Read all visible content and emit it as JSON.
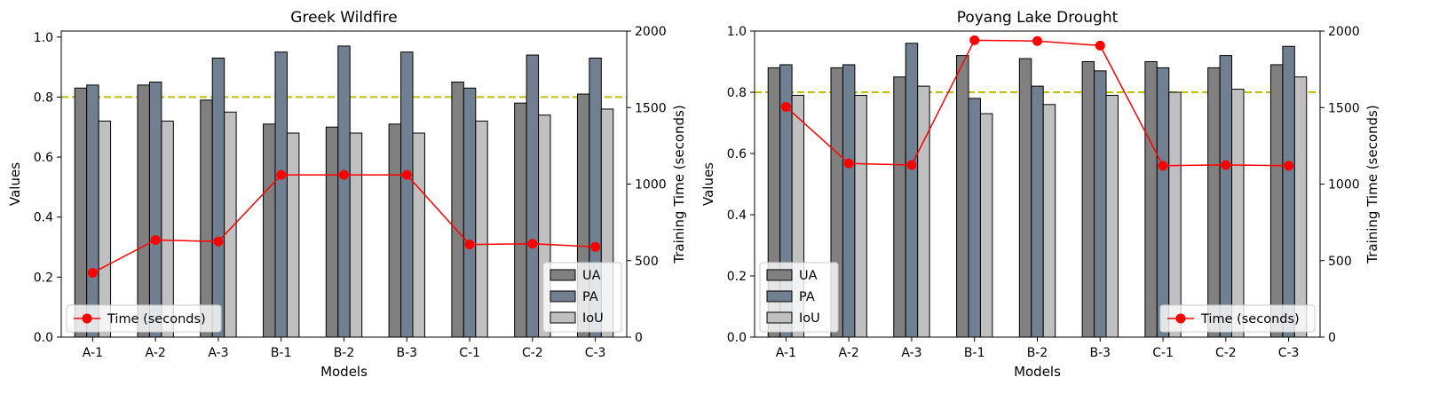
{
  "colors": {
    "ua": "#808080",
    "pa": "#708090",
    "iou": "#c0c0c0",
    "time_line": "#ff0000",
    "threshold": "#bfbf00",
    "bar_edge": "#000000"
  },
  "chart_data": [
    {
      "type": "bar",
      "title": "Greek Wildfire",
      "xlabel": "Models",
      "ylabel": "Values",
      "y2label": "Training Time (seconds)",
      "categories": [
        "A-1",
        "A-2",
        "A-3",
        "B-1",
        "B-2",
        "B-3",
        "C-1",
        "C-2",
        "C-3"
      ],
      "ylim": [
        0,
        1.02
      ],
      "y2lim": [
        0,
        2000
      ],
      "yticks": [
        "0.0",
        "0.2",
        "0.4",
        "0.6",
        "0.8",
        "1.0"
      ],
      "y2ticks": [
        "0",
        "500",
        "1000",
        "1500",
        "2000"
      ],
      "threshold": 0.8,
      "series": [
        {
          "name": "UA",
          "values": [
            0.83,
            0.84,
            0.79,
            0.71,
            0.7,
            0.71,
            0.85,
            0.78,
            0.81
          ]
        },
        {
          "name": "PA",
          "values": [
            0.84,
            0.85,
            0.93,
            0.95,
            0.97,
            0.95,
            0.83,
            0.94,
            0.93
          ]
        },
        {
          "name": "IoU",
          "values": [
            0.72,
            0.72,
            0.75,
            0.68,
            0.68,
            0.68,
            0.72,
            0.74,
            0.76
          ]
        }
      ],
      "line_series": {
        "name": "Time (seconds)",
        "values": [
          420,
          635,
          625,
          1060,
          1060,
          1060,
          605,
          610,
          590
        ]
      },
      "bar_legend_position": "lower right",
      "line_legend_position": "lower left"
    },
    {
      "type": "bar",
      "title": "Poyang Lake Drought",
      "xlabel": "Models",
      "ylabel": "Values",
      "y2label": "Training Time (seconds)",
      "categories": [
        "A-1",
        "A-2",
        "A-3",
        "B-1",
        "B-2",
        "B-3",
        "C-1",
        "C-2",
        "C-3"
      ],
      "ylim": [
        0,
        1.0
      ],
      "y2lim": [
        0,
        2000
      ],
      "yticks": [
        "0.0",
        "0.2",
        "0.4",
        "0.6",
        "0.8",
        "1.0"
      ],
      "y2ticks": [
        "0",
        "500",
        "1000",
        "1500",
        "2000"
      ],
      "threshold": 0.8,
      "series": [
        {
          "name": "UA",
          "values": [
            0.88,
            0.88,
            0.85,
            0.92,
            0.91,
            0.9,
            0.9,
            0.88,
            0.89
          ]
        },
        {
          "name": "PA",
          "values": [
            0.89,
            0.89,
            0.96,
            0.78,
            0.82,
            0.87,
            0.88,
            0.92,
            0.95
          ]
        },
        {
          "name": "IoU",
          "values": [
            0.79,
            0.79,
            0.82,
            0.73,
            0.76,
            0.79,
            0.8,
            0.81,
            0.85
          ]
        }
      ],
      "line_series": {
        "name": "Time (seconds)",
        "values": [
          1505,
          1135,
          1125,
          1940,
          1935,
          1905,
          1120,
          1125,
          1120
        ]
      },
      "bar_legend_position": "lower left",
      "line_legend_position": "lower right"
    }
  ]
}
